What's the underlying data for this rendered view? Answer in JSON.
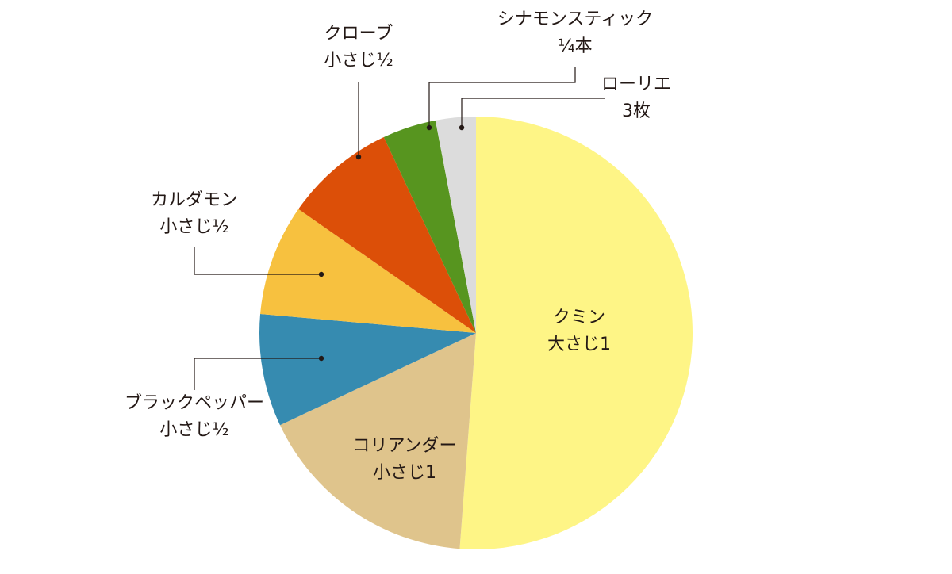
{
  "chart_data": {
    "type": "pie",
    "title": "",
    "start_angle_deg": 0,
    "direction": "clockwise",
    "slices": [
      {
        "label": "クミン",
        "amount": "大さじ1",
        "value": 51.2,
        "color": "#fef586"
      },
      {
        "label": "コリアンダー",
        "amount": "小さじ1",
        "value": 16.8,
        "color": "#dfc48c"
      },
      {
        "label": "ブラックペッパー",
        "amount": "小さじ½",
        "value": 8.4,
        "color": "#368bb0"
      },
      {
        "label": "カルダモン",
        "amount": "小さじ½",
        "value": 8.3,
        "color": "#f7c13f"
      },
      {
        "label": "クローブ",
        "amount": "小さじ½",
        "value": 8.3,
        "color": "#dc4f08"
      },
      {
        "label": "シナモンスティック",
        "amount": "¼本",
        "value": 4.0,
        "color": "#57951f"
      },
      {
        "label": "ローリエ",
        "amount": "3枚",
        "value": 3.0,
        "color": "#dcdcdc"
      }
    ]
  }
}
